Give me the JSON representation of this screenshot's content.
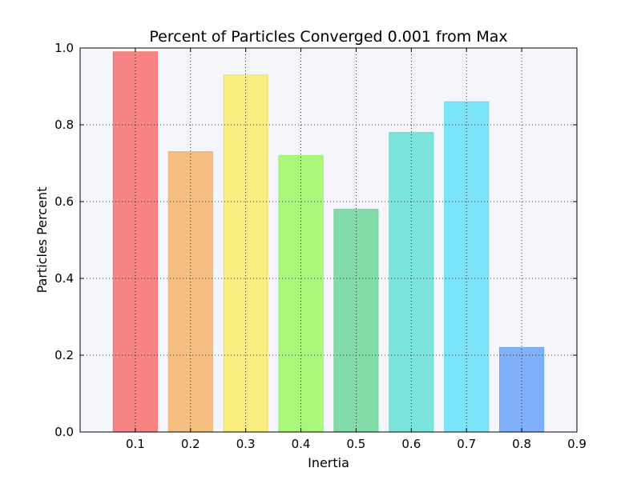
{
  "chart_data": {
    "type": "bar",
    "title": "Percent of Particles Converged 0.001 from Max",
    "xlabel": "Inertia",
    "ylabel": "Particles Percent",
    "categories": [
      "0.1",
      "0.2",
      "0.3",
      "0.4",
      "0.5",
      "0.6",
      "0.7",
      "0.8"
    ],
    "x": [
      0.1,
      0.2,
      0.3,
      0.4,
      0.5,
      0.6,
      0.7,
      0.8
    ],
    "values": [
      0.99,
      0.73,
      0.93,
      0.72,
      0.58,
      0.78,
      0.86,
      0.22
    ],
    "bar_colors": [
      "#f88383",
      "#f7be82",
      "#f8ed7e",
      "#a9f87c",
      "#81dca8",
      "#7ae4dc",
      "#7be4f8",
      "#80b1f8"
    ],
    "bar_edge_colors": [
      "#f27070",
      "#f2ad6a",
      "#ebe070",
      "#95ef66",
      "#6fd49a",
      "#66dccf",
      "#66dcf2",
      "#6aa2f2"
    ],
    "xlim": [
      0,
      0.9
    ],
    "ylim": [
      0,
      1.0
    ],
    "x_ticks": [
      "0.1",
      "0.2",
      "0.3",
      "0.4",
      "0.5",
      "0.6",
      "0.7",
      "0.8",
      "0.9"
    ],
    "y_ticks": [
      "0.0",
      "0.2",
      "0.4",
      "0.6",
      "0.8",
      "1.0"
    ],
    "grid": true,
    "plot_background": "#f5f6fb"
  }
}
